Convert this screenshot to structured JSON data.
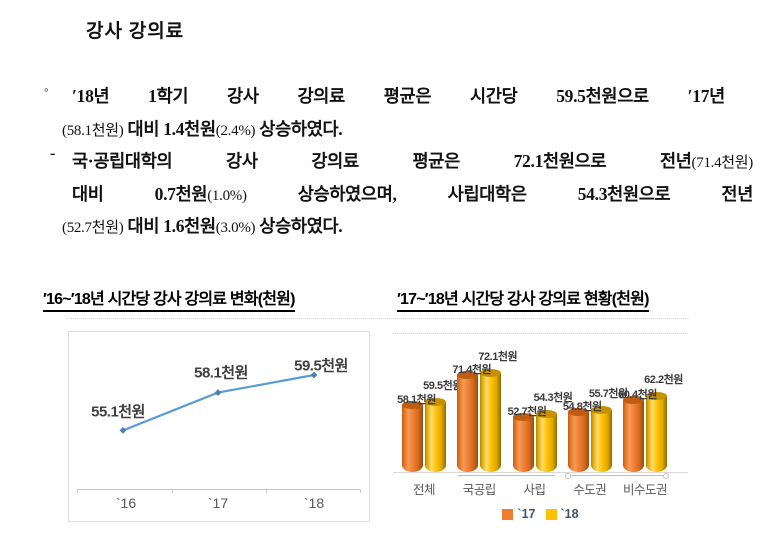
{
  "document": {
    "title": "강사 강의료",
    "bullet1": {
      "marker": "◦",
      "line1": {
        "r1": "′18년 1학기 강사 강의료 평균은 시간당 59.5천원으로 ′17년"
      },
      "line2": {
        "r1": "(58.1천원)",
        "r2": " 대비 1.4천원",
        "r3": "(2.4%)",
        "r4": " 상승하였다."
      }
    },
    "bullet2": {
      "marker": "-",
      "line1": {
        "r1": "국·공립대학의 강사 강의료 평균은 72.1천원으로 전년",
        "r2": "(71.4천원)"
      },
      "line2": {
        "r1": "대비 0.7천원",
        "r2": "(1.0%)",
        "r3": " 상승하였으며, 사립대학은 54.3천원으로 전년"
      },
      "line3": {
        "r1": "(52.7천원)",
        "r2": " 대비 1.6천원",
        "r3": "(3.0%)",
        "r4": " 상승하였다."
      }
    }
  },
  "chart_data": [
    {
      "type": "line",
      "title": "′16~′18년 시간당 강사 강의료 변화(천원)",
      "x": [
        "`16",
        "`17",
        "`18"
      ],
      "values": [
        55.1,
        58.1,
        59.5
      ],
      "labels": [
        "55.1천원",
        "58.1천원",
        "59.5천원"
      ],
      "unit": "천원",
      "line_color": "#5b9bd5",
      "marker_color": "#4a7ebb",
      "grid": "off",
      "ylim": [
        50.5,
        63
      ]
    },
    {
      "type": "bar",
      "title": "′17~′18년 시간당 강사 강의료 현황(천원)",
      "categories": [
        "전체",
        "국공립",
        "사립",
        "수도권",
        "비수도권"
      ],
      "series": [
        {
          "name": "`17",
          "color": "#ed7d31",
          "values": [
            58.1,
            71.4,
            52.7,
            54.8,
            60.4
          ],
          "labels": [
            "58.1천원",
            "71.4천원",
            "52.7천원",
            "54.8천원",
            "60.4천원"
          ]
        },
        {
          "name": "`18",
          "color": "#ffc000",
          "values": [
            59.5,
            72.1,
            54.3,
            55.7,
            62.2
          ],
          "labels": [
            "59.5천원",
            "72.1천원",
            "54.3천원",
            "55.7천원",
            "62.2천원"
          ]
        }
      ],
      "legend_position": "bottom",
      "unit": "천원",
      "ylim": [
        28.4,
        78
      ]
    }
  ]
}
